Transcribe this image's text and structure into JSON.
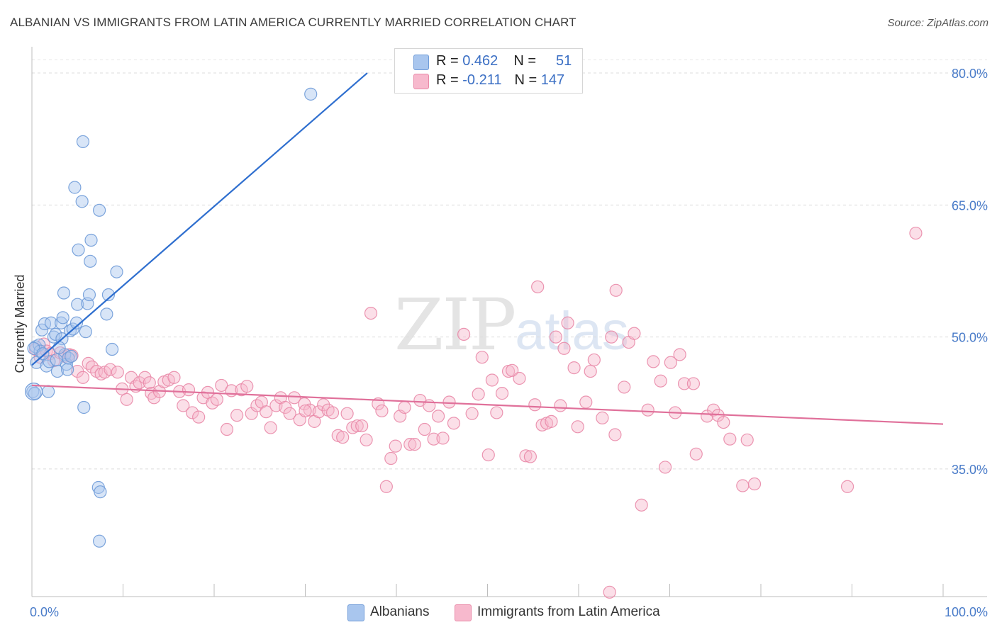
{
  "title": "ALBANIAN VS IMMIGRANTS FROM LATIN AMERICA CURRENTLY MARRIED CORRELATION CHART",
  "source": "Source: ZipAtlas.com",
  "watermark": {
    "zip": "ZIP",
    "atlas": "atlas"
  },
  "legend": {
    "rows": [
      {
        "r_label": "R =",
        "r_value": "0.462",
        "n_label": "N =",
        "n_value": "51",
        "color": "#a9c6ee",
        "stroke": "#6f9bd8"
      },
      {
        "r_label": "R =",
        "r_value": "-0.211",
        "n_label": "N =",
        "n_value": "147",
        "color": "#f7b9cd",
        "stroke": "#e98aa8"
      }
    ]
  },
  "bottom_legend": [
    {
      "label": "Albanians",
      "color": "#a9c6ee",
      "stroke": "#6f9bd8"
    },
    {
      "label": "Immigrants from Latin America",
      "color": "#f7b9cd",
      "stroke": "#e98aa8"
    }
  ],
  "chart_data": {
    "type": "scatter",
    "title": "ALBANIAN VS IMMIGRANTS FROM LATIN AMERICA CURRENTLY MARRIED CORRELATION CHART",
    "xlabel": "",
    "ylabel": "Currently Married",
    "xlim": [
      0,
      100
    ],
    "ylim": [
      20.5,
      82.5
    ],
    "x_tick_labels": [
      "0.0%",
      "100.0%"
    ],
    "y_ticks": [
      35,
      50,
      65,
      80
    ],
    "y_tick_labels": [
      "35.0%",
      "50.0%",
      "65.0%",
      "80.0%"
    ],
    "grid": true,
    "legend_position": "top-center",
    "series": [
      {
        "name": "Albanians",
        "color": "#6f9bd8",
        "fill": "#a9c6ee",
        "trend": {
          "x": [
            0.0,
            36.8
          ],
          "y": [
            46.8,
            80.0
          ]
        },
        "points": [
          [
            0.1,
            43.8
          ],
          [
            0.3,
            43.6
          ],
          [
            0.4,
            48.9
          ],
          [
            0.5,
            47.1
          ],
          [
            0.8,
            49.1
          ],
          [
            0.9,
            48.4
          ],
          [
            1.1,
            50.8
          ],
          [
            1.4,
            51.5
          ],
          [
            1.6,
            46.7
          ],
          [
            1.8,
            43.8
          ],
          [
            1.9,
            47.2
          ],
          [
            2.1,
            51.6
          ],
          [
            2.4,
            50.0
          ],
          [
            2.6,
            50.3
          ],
          [
            2.8,
            46.1
          ],
          [
            3.2,
            51.6
          ],
          [
            3.3,
            49.8
          ],
          [
            3.4,
            52.2
          ],
          [
            3.5,
            55.0
          ],
          [
            3.6,
            48.0
          ],
          [
            3.8,
            46.9
          ],
          [
            3.9,
            46.3
          ],
          [
            4.0,
            47.6
          ],
          [
            4.2,
            50.7
          ],
          [
            4.5,
            50.9
          ],
          [
            4.7,
            67.0
          ],
          [
            4.9,
            51.6
          ],
          [
            5.0,
            53.7
          ],
          [
            5.1,
            59.9
          ],
          [
            5.5,
            65.4
          ],
          [
            5.6,
            72.2
          ],
          [
            5.7,
            42.0
          ],
          [
            5.9,
            50.6
          ],
          [
            6.1,
            53.8
          ],
          [
            6.3,
            54.8
          ],
          [
            6.4,
            58.6
          ],
          [
            6.5,
            61.0
          ],
          [
            7.3,
            32.9
          ],
          [
            7.4,
            64.4
          ],
          [
            7.5,
            32.4
          ],
          [
            7.4,
            26.8
          ],
          [
            8.2,
            52.6
          ],
          [
            8.4,
            54.8
          ],
          [
            8.8,
            48.6
          ],
          [
            9.3,
            57.4
          ],
          [
            30.6,
            77.6
          ],
          [
            0.2,
            48.7
          ],
          [
            1.2,
            48.1
          ],
          [
            2.7,
            47.4
          ],
          [
            3.0,
            48.8
          ],
          [
            4.3,
            47.8
          ]
        ]
      },
      {
        "name": "Immigrants from Latin America",
        "color": "#e98aa8",
        "fill": "#f7b9cd",
        "trend": {
          "x": [
            0.0,
            100.0
          ],
          "y": [
            44.5,
            40.1
          ]
        },
        "points": [
          [
            0.4,
            48.6
          ],
          [
            0.9,
            47.7
          ],
          [
            1.3,
            49.2
          ],
          [
            1.6,
            48.4
          ],
          [
            2.0,
            48.1
          ],
          [
            2.4,
            47.3
          ],
          [
            3.1,
            48.2
          ],
          [
            3.6,
            47.8
          ],
          [
            4.1,
            48.0
          ],
          [
            4.4,
            47.9
          ],
          [
            5.0,
            46.1
          ],
          [
            5.6,
            45.4
          ],
          [
            6.2,
            47.0
          ],
          [
            6.6,
            46.6
          ],
          [
            7.1,
            46.1
          ],
          [
            7.6,
            45.8
          ],
          [
            8.0,
            46.0
          ],
          [
            8.6,
            46.3
          ],
          [
            9.4,
            46.0
          ],
          [
            9.9,
            44.1
          ],
          [
            10.4,
            42.9
          ],
          [
            10.9,
            45.4
          ],
          [
            11.4,
            44.4
          ],
          [
            11.8,
            44.8
          ],
          [
            12.4,
            45.4
          ],
          [
            12.9,
            44.8
          ],
          [
            13.1,
            43.6
          ],
          [
            13.4,
            43.1
          ],
          [
            14.0,
            43.8
          ],
          [
            14.5,
            44.9
          ],
          [
            15.0,
            45.1
          ],
          [
            15.6,
            45.4
          ],
          [
            16.2,
            43.8
          ],
          [
            16.6,
            42.2
          ],
          [
            17.2,
            44.0
          ],
          [
            17.6,
            41.4
          ],
          [
            18.3,
            40.9
          ],
          [
            18.8,
            43.1
          ],
          [
            19.3,
            43.7
          ],
          [
            19.8,
            42.5
          ],
          [
            20.3,
            42.9
          ],
          [
            20.8,
            44.5
          ],
          [
            21.4,
            39.5
          ],
          [
            21.9,
            43.9
          ],
          [
            22.5,
            41.1
          ],
          [
            23.0,
            44.0
          ],
          [
            23.6,
            44.4
          ],
          [
            24.1,
            41.3
          ],
          [
            24.7,
            42.2
          ],
          [
            25.2,
            42.6
          ],
          [
            25.7,
            41.5
          ],
          [
            26.2,
            39.7
          ],
          [
            26.8,
            42.2
          ],
          [
            27.3,
            43.1
          ],
          [
            27.8,
            42.0
          ],
          [
            28.3,
            41.3
          ],
          [
            28.8,
            43.1
          ],
          [
            29.4,
            40.6
          ],
          [
            29.9,
            42.4
          ],
          [
            30.5,
            41.7
          ],
          [
            31.0,
            40.4
          ],
          [
            31.5,
            41.5
          ],
          [
            32.0,
            42.3
          ],
          [
            32.5,
            41.7
          ],
          [
            33.0,
            41.4
          ],
          [
            33.6,
            38.8
          ],
          [
            34.1,
            38.6
          ],
          [
            34.6,
            41.3
          ],
          [
            35.2,
            39.7
          ],
          [
            35.7,
            39.9
          ],
          [
            36.2,
            39.9
          ],
          [
            36.7,
            38.3
          ],
          [
            37.2,
            52.7
          ],
          [
            38.0,
            42.4
          ],
          [
            38.4,
            41.6
          ],
          [
            38.9,
            33.0
          ],
          [
            39.4,
            36.2
          ],
          [
            39.9,
            37.6
          ],
          [
            40.4,
            41.0
          ],
          [
            40.9,
            42.0
          ],
          [
            41.5,
            37.8
          ],
          [
            42.0,
            37.8
          ],
          [
            42.6,
            42.8
          ],
          [
            43.1,
            39.5
          ],
          [
            43.6,
            42.2
          ],
          [
            44.1,
            38.4
          ],
          [
            44.6,
            41.0
          ],
          [
            45.1,
            38.5
          ],
          [
            45.8,
            42.6
          ],
          [
            46.3,
            40.2
          ],
          [
            47.4,
            50.3
          ],
          [
            48.3,
            41.3
          ],
          [
            49.0,
            43.5
          ],
          [
            49.4,
            47.7
          ],
          [
            50.1,
            36.6
          ],
          [
            50.5,
            45.1
          ],
          [
            51.0,
            41.4
          ],
          [
            51.6,
            43.6
          ],
          [
            52.3,
            46.1
          ],
          [
            52.7,
            46.2
          ],
          [
            53.5,
            45.3
          ],
          [
            54.2,
            36.5
          ],
          [
            54.7,
            36.4
          ],
          [
            55.2,
            42.3
          ],
          [
            55.5,
            55.7
          ],
          [
            56.0,
            40.0
          ],
          [
            56.5,
            40.2
          ],
          [
            57.0,
            40.4
          ],
          [
            57.5,
            50.0
          ],
          [
            58.0,
            42.2
          ],
          [
            58.4,
            48.7
          ],
          [
            58.8,
            51.6
          ],
          [
            59.5,
            46.5
          ],
          [
            59.9,
            39.8
          ],
          [
            60.8,
            42.6
          ],
          [
            61.3,
            46.1
          ],
          [
            61.7,
            47.4
          ],
          [
            62.6,
            40.8
          ],
          [
            63.6,
            50.0
          ],
          [
            64.1,
            55.3
          ],
          [
            65.0,
            44.3
          ],
          [
            65.5,
            49.4
          ],
          [
            66.1,
            50.4
          ],
          [
            66.9,
            30.9
          ],
          [
            67.6,
            41.7
          ],
          [
            68.2,
            47.2
          ],
          [
            69.0,
            45.0
          ],
          [
            69.5,
            35.2
          ],
          [
            70.1,
            47.1
          ],
          [
            70.6,
            41.4
          ],
          [
            71.1,
            48.0
          ],
          [
            71.6,
            44.7
          ],
          [
            72.6,
            44.7
          ],
          [
            72.9,
            36.7
          ],
          [
            74.1,
            41.0
          ],
          [
            74.8,
            41.7
          ],
          [
            75.3,
            41.1
          ],
          [
            75.9,
            40.3
          ],
          [
            76.6,
            38.4
          ],
          [
            78.0,
            33.1
          ],
          [
            78.5,
            38.3
          ],
          [
            79.3,
            33.3
          ],
          [
            89.5,
            33.0
          ],
          [
            97.0,
            61.8
          ],
          [
            63.4,
            21.0
          ],
          [
            64.0,
            38.9
          ],
          [
            30.0,
            41.6
          ]
        ]
      }
    ]
  }
}
